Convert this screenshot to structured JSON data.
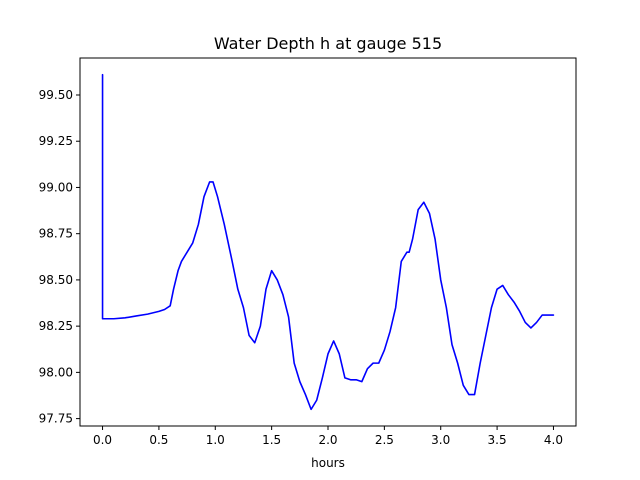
{
  "chart_data": {
    "type": "line",
    "title": "Water Depth h at gauge 515",
    "xlabel": "hours",
    "ylabel": "",
    "xlim": [
      -0.2,
      4.2
    ],
    "ylim": [
      97.71,
      99.7
    ],
    "xticks": [
      0.0,
      0.5,
      1.0,
      1.5,
      2.0,
      2.5,
      3.0,
      3.5,
      4.0
    ],
    "xtick_labels": [
      "0.0",
      "0.5",
      "1.0",
      "1.5",
      "2.0",
      "2.5",
      "3.0",
      "3.5",
      "4.0"
    ],
    "yticks": [
      97.75,
      98.0,
      98.25,
      98.5,
      98.75,
      99.0,
      99.25,
      99.5
    ],
    "ytick_labels": [
      "97.75",
      "98.00",
      "98.25",
      "98.50",
      "98.75",
      "99.00",
      "99.25",
      "99.50"
    ],
    "grid": false,
    "legend": "none",
    "series": [
      {
        "color": "#0000ff",
        "x": [
          0.0,
          0.0,
          0.1,
          0.2,
          0.3,
          0.4,
          0.5,
          0.55,
          0.6,
          0.63,
          0.67,
          0.7,
          0.75,
          0.8,
          0.85,
          0.9,
          0.95,
          0.98,
          1.02,
          1.08,
          1.15,
          1.2,
          1.25,
          1.3,
          1.35,
          1.4,
          1.45,
          1.5,
          1.55,
          1.6,
          1.65,
          1.7,
          1.75,
          1.8,
          1.85,
          1.9,
          1.95,
          2.0,
          2.05,
          2.1,
          2.15,
          2.2,
          2.25,
          2.3,
          2.35,
          2.4,
          2.45,
          2.5,
          2.55,
          2.6,
          2.65,
          2.7,
          2.72,
          2.75,
          2.8,
          2.85,
          2.9,
          2.95,
          3.0,
          3.05,
          3.1,
          3.15,
          3.2,
          3.25,
          3.3,
          3.35,
          3.4,
          3.45,
          3.5,
          3.55,
          3.6,
          3.65,
          3.7,
          3.75,
          3.8,
          3.85,
          3.9,
          3.95,
          4.0
        ],
        "y": [
          99.61,
          98.29,
          98.29,
          98.295,
          98.305,
          98.315,
          98.33,
          98.34,
          98.36,
          98.45,
          98.55,
          98.6,
          98.65,
          98.7,
          98.8,
          98.95,
          99.03,
          99.03,
          98.95,
          98.8,
          98.6,
          98.45,
          98.35,
          98.2,
          98.16,
          98.25,
          98.45,
          98.55,
          98.5,
          98.42,
          98.3,
          98.05,
          97.95,
          97.88,
          97.8,
          97.85,
          97.97,
          98.1,
          98.17,
          98.1,
          97.97,
          97.96,
          97.96,
          97.95,
          98.02,
          98.05,
          98.05,
          98.12,
          98.22,
          98.35,
          98.6,
          98.65,
          98.65,
          98.72,
          98.88,
          98.92,
          98.86,
          98.72,
          98.5,
          98.35,
          98.15,
          98.05,
          97.93,
          97.88,
          97.88,
          98.05,
          98.2,
          98.35,
          98.45,
          98.47,
          98.42,
          98.38,
          98.33,
          98.27,
          98.24,
          98.27,
          98.31,
          98.31,
          98.31
        ]
      }
    ]
  }
}
